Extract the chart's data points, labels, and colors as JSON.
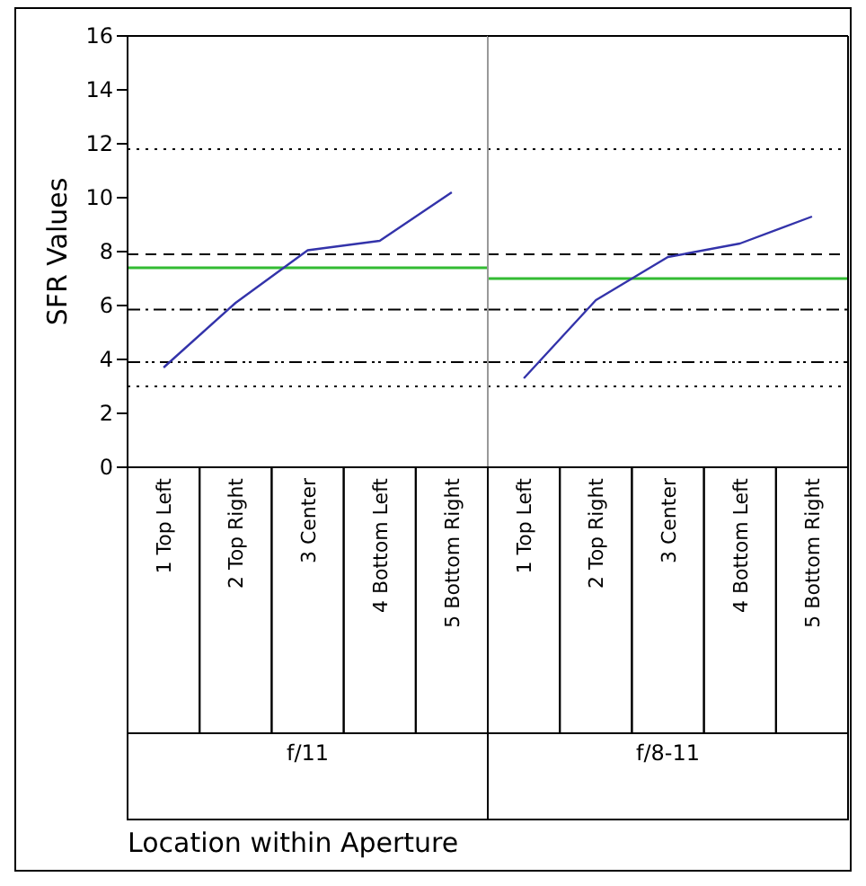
{
  "chart_data": [
    {
      "type": "line",
      "ylabel": "SFR Values",
      "xlabel": "f/11",
      "categories": [
        "1 Top Left",
        "2 Top Right",
        "3 Center",
        "4 Bottom Left",
        "5 Bottom Right"
      ],
      "series": [
        {
          "color": "#3333aa",
          "values": [
            3.7,
            6.1,
            8.05,
            8.4,
            10.2
          ]
        }
      ],
      "ylim": [
        0,
        16
      ],
      "yticks": [
        0,
        2,
        4,
        6,
        8,
        10,
        12,
        14,
        16
      ],
      "grid": false,
      "marker": "none",
      "ref_lines": [
        {
          "axis": "y",
          "value": 11.8,
          "color": "#000000",
          "line_style": "dotted"
        },
        {
          "axis": "y",
          "value": 7.9,
          "color": "#000000",
          "line_style": "dashed"
        },
        {
          "axis": "y",
          "value": 7.4,
          "color": "#33bb33",
          "line_style": "solid"
        },
        {
          "axis": "y",
          "value": 5.85,
          "color": "#000000",
          "line_style": "dashdot"
        },
        {
          "axis": "y",
          "value": 3.9,
          "color": "#000000",
          "line_style": "dashdotdot"
        },
        {
          "axis": "y",
          "value": 3.0,
          "color": "#000000",
          "line_style": "dotted"
        }
      ],
      "annotations": [
        "Location within Aperture"
      ]
    },
    {
      "type": "line",
      "xlabel": "f/8-11",
      "categories": [
        "1 Top Left",
        "2 Top Right",
        "3 Center",
        "4 Bottom Left",
        "5 Bottom Right"
      ],
      "series": [
        {
          "color": "#3333aa",
          "values": [
            3.3,
            6.2,
            7.8,
            8.3,
            9.3
          ]
        }
      ],
      "ylim": [
        0,
        16
      ],
      "tick_labels": "x",
      "grid": false,
      "marker": "none",
      "ref_lines": [
        {
          "axis": "y",
          "value": 11.8,
          "color": "#000000",
          "line_style": "dotted"
        },
        {
          "axis": "y",
          "value": 7.9,
          "color": "#000000",
          "line_style": "dashed"
        },
        {
          "axis": "y",
          "value": 7.0,
          "color": "#33bb33",
          "line_style": "solid"
        },
        {
          "axis": "y",
          "value": 5.85,
          "color": "#000000",
          "line_style": "dashdot"
        },
        {
          "axis": "y",
          "value": 3.9,
          "color": "#000000",
          "line_style": "dashdotdot"
        },
        {
          "axis": "y",
          "value": 3.0,
          "color": "#000000",
          "line_style": "dotted"
        }
      ]
    }
  ]
}
